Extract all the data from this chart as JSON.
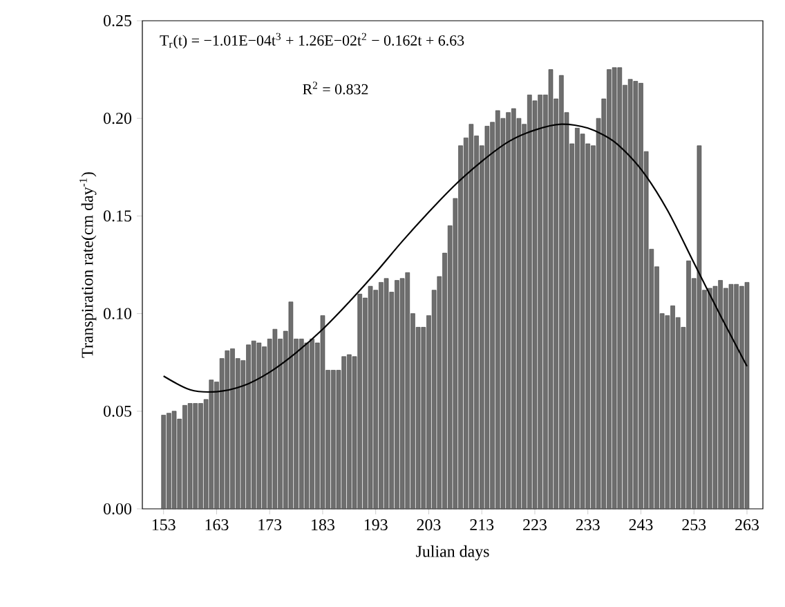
{
  "chart_data": {
    "type": "bar",
    "xlabel": "Julian days",
    "ylabel": "Transpiration rate(cm day$^{-1}$)",
    "annotations": [
      "T$_{r}$(t) = −1.01E−04t$^{3}$ + 1.26E−02t$^{2}$ − 0.162t + 6.63",
      "R$^{2}$ = 0.832"
    ],
    "x": [
      153,
      154,
      155,
      156,
      157,
      158,
      159,
      160,
      161,
      162,
      163,
      164,
      165,
      166,
      167,
      168,
      169,
      170,
      171,
      172,
      173,
      174,
      175,
      176,
      177,
      178,
      179,
      180,
      181,
      182,
      183,
      184,
      185,
      186,
      187,
      188,
      189,
      190,
      191,
      192,
      193,
      194,
      195,
      196,
      197,
      198,
      199,
      200,
      201,
      202,
      203,
      204,
      205,
      206,
      207,
      208,
      209,
      210,
      211,
      212,
      213,
      214,
      215,
      216,
      217,
      218,
      219,
      220,
      221,
      222,
      223,
      224,
      225,
      226,
      227,
      228,
      229,
      230,
      231,
      232,
      233,
      234,
      235,
      236,
      237,
      238,
      239,
      240,
      241,
      242,
      243,
      244,
      245,
      246,
      247,
      248,
      249,
      250,
      251,
      252,
      253,
      254,
      255,
      256,
      257,
      258,
      259,
      260,
      261,
      262,
      263
    ],
    "series": [
      {
        "color": "#6e6e6e",
        "values": [
          0.048,
          0.049,
          0.05,
          0.046,
          0.053,
          0.054,
          0.054,
          0.054,
          0.056,
          0.066,
          0.065,
          0.077,
          0.081,
          0.082,
          0.077,
          0.076,
          0.084,
          0.086,
          0.085,
          0.083,
          0.087,
          0.092,
          0.087,
          0.091,
          0.106,
          0.087,
          0.087,
          0.085,
          0.087,
          0.085,
          0.099,
          0.071,
          0.071,
          0.071,
          0.078,
          0.079,
          0.078,
          0.11,
          0.108,
          0.114,
          0.112,
          0.116,
          0.118,
          0.111,
          0.117,
          0.118,
          0.121,
          0.1,
          0.093,
          0.093,
          0.099,
          0.112,
          0.119,
          0.131,
          0.145,
          0.159,
          0.186,
          0.19,
          0.197,
          0.191,
          0.186,
          0.196,
          0.198,
          0.204,
          0.2,
          0.203,
          0.205,
          0.2,
          0.197,
          0.212,
          0.209,
          0.212,
          0.212,
          0.225,
          0.21,
          0.222,
          0.203,
          0.187,
          0.195,
          0.192,
          0.187,
          0.186,
          0.2,
          0.21,
          0.225,
          0.226,
          0.226,
          0.217,
          0.22,
          0.219,
          0.218,
          0.183,
          0.133,
          0.124,
          0.1,
          0.099,
          0.104,
          0.098,
          0.093,
          0.127,
          0.118,
          0.186,
          0.112,
          0.113,
          0.114,
          0.117,
          0.113,
          0.115,
          0.115,
          0.114,
          0.116
        ]
      },
      {
        "type": "line",
        "color": "#000000",
        "x": [
          153,
          158,
          163,
          168,
          173,
          178,
          183,
          188,
          193,
          198,
          203,
          208,
          213,
          218,
          223,
          228,
          233,
          238,
          243,
          248,
          253,
          258,
          263
        ],
        "values": [
          0.068,
          0.061,
          0.06,
          0.063,
          0.07,
          0.08,
          0.092,
          0.106,
          0.121,
          0.137,
          0.152,
          0.166,
          0.178,
          0.188,
          0.194,
          0.197,
          0.195,
          0.188,
          0.174,
          0.153,
          0.126,
          0.099,
          0.073
        ]
      }
    ],
    "xlim": [
      149,
      266
    ],
    "ylim": [
      0,
      0.25
    ],
    "xticks": [
      153,
      163,
      173,
      183,
      193,
      203,
      213,
      223,
      233,
      243,
      253,
      263
    ],
    "yticks": [
      {
        "value": 0,
        "label": "0.00"
      },
      {
        "value": 0.05,
        "label": "0.05"
      },
      {
        "value": 0.1,
        "label": "0.10"
      },
      {
        "value": 0.15,
        "label": "0.15"
      },
      {
        "value": 0.2,
        "label": "0.20"
      },
      {
        "value": 0.25,
        "label": "0.25"
      }
    ]
  }
}
